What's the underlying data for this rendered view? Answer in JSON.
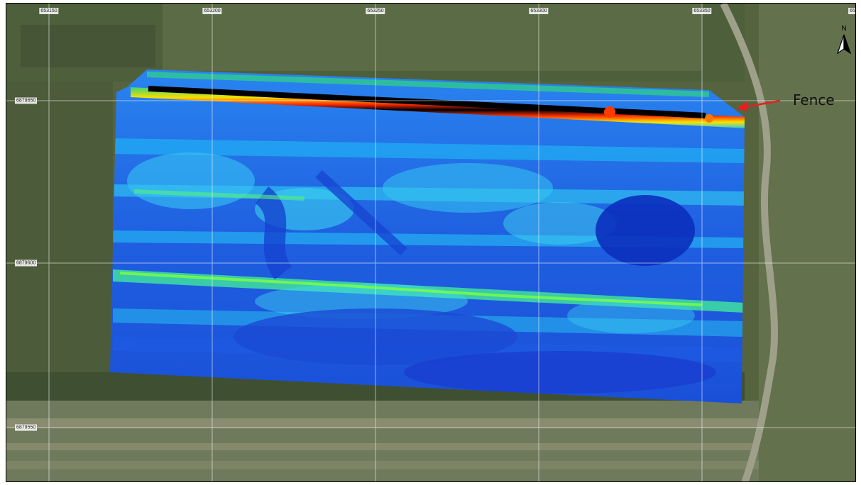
{
  "map": {
    "grid": {
      "x_labels": [
        "653150",
        "653200",
        "653250",
        "653300",
        "653350",
        "65"
      ],
      "y_labels": [
        "6879650",
        "6879600",
        "6879550"
      ]
    },
    "north_label": "N",
    "annotation": {
      "label": "Fence",
      "arrow_color": "#e32020"
    },
    "colors": {
      "survey_background": "#1f5fe0",
      "anomaly_high": "#000000",
      "anomaly_mid": "#ff2200",
      "anomaly_low": "#00e0ff",
      "grid_line": "#ffffff"
    }
  }
}
